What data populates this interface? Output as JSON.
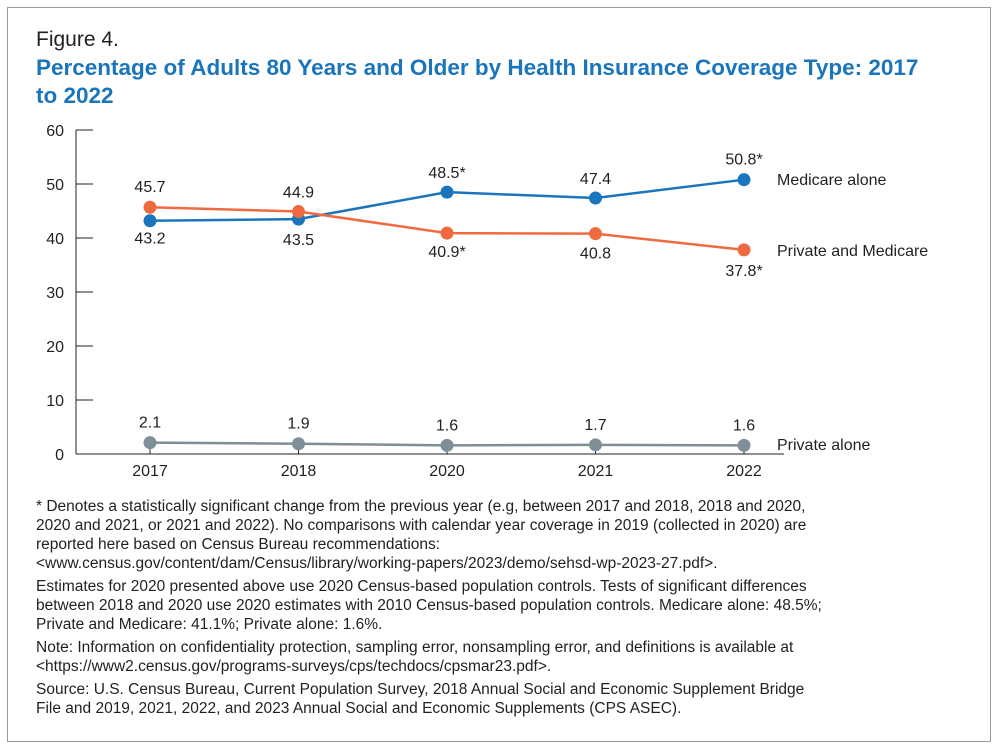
{
  "figure_label": "Figure 4.",
  "title": "Percentage of Adults 80 Years and Older by Health Insurance Coverage Type: 2017 to 2022",
  "colors": {
    "title": "#1a75bc",
    "medicare_alone": "#1a75bc",
    "private_and_medicare": "#ef6a3e",
    "private_alone": "#7f8f98"
  },
  "chart_data": {
    "type": "line",
    "title": "Percentage of Adults 80 Years and Older by Health Insurance Coverage Type: 2017 to 2022",
    "x": [
      "2017",
      "2018",
      "2020",
      "2021",
      "2022"
    ],
    "ylim": [
      0,
      60
    ],
    "yticks": [
      0,
      10,
      20,
      30,
      40,
      50,
      60
    ],
    "grid": false,
    "legend": "inline-right",
    "series": [
      {
        "name": "Medicare alone",
        "values": [
          43.2,
          43.5,
          48.5,
          47.4,
          50.8
        ],
        "labels": [
          "43.2",
          "43.5",
          "48.5*",
          "47.4",
          "50.8*"
        ],
        "color": "#1a75bc"
      },
      {
        "name": "Private and Medicare",
        "values": [
          45.7,
          44.9,
          40.9,
          40.8,
          37.8
        ],
        "labels": [
          "45.7",
          "44.9",
          "40.9*",
          "40.8",
          "37.8*"
        ],
        "color": "#ef6a3e"
      },
      {
        "name": "Private alone",
        "values": [
          2.1,
          1.9,
          1.6,
          1.7,
          1.6
        ],
        "labels": [
          "2.1",
          "1.9",
          "1.6",
          "1.7",
          "1.6"
        ],
        "color": "#7f8f98"
      }
    ]
  },
  "notes": {
    "significance": [
      "* Denotes a statistically significant change from the previous year (e.g, between 2017 and 2018, 2018 and 2020,",
      "2020 and 2021, or 2021 and 2022). No comparisons with calendar year coverage in 2019 (collected in 2020) are",
      "reported here based on Census Bureau recommendations:",
      "<www.census.gov/content/dam/Census/library/working-papers/2023/demo/sehsd-wp-2023-27.pdf>."
    ],
    "estimates": [
      "Estimates for 2020 presented above use 2020 Census-based population controls. Tests of significant differences",
      "between 2018 and 2020 use 2020 estimates with 2010 Census-based population controls. Medicare alone: 48.5%;",
      "Private and Medicare: 41.1%; Private alone: 1.6%."
    ],
    "note": [
      "Note: Information on confidentiality protection, sampling error, nonsampling error, and definitions is available at",
      "<https://www2.census.gov/programs-surveys/cps/techdocs/cpsmar23.pdf>."
    ],
    "source": [
      "Source: U.S. Census Bureau, Current Population Survey, 2018 Annual Social and Economic Supplement Bridge",
      "File and 2019, 2021, 2022, and 2023 Annual Social and Economic Supplements (CPS ASEC)."
    ]
  }
}
